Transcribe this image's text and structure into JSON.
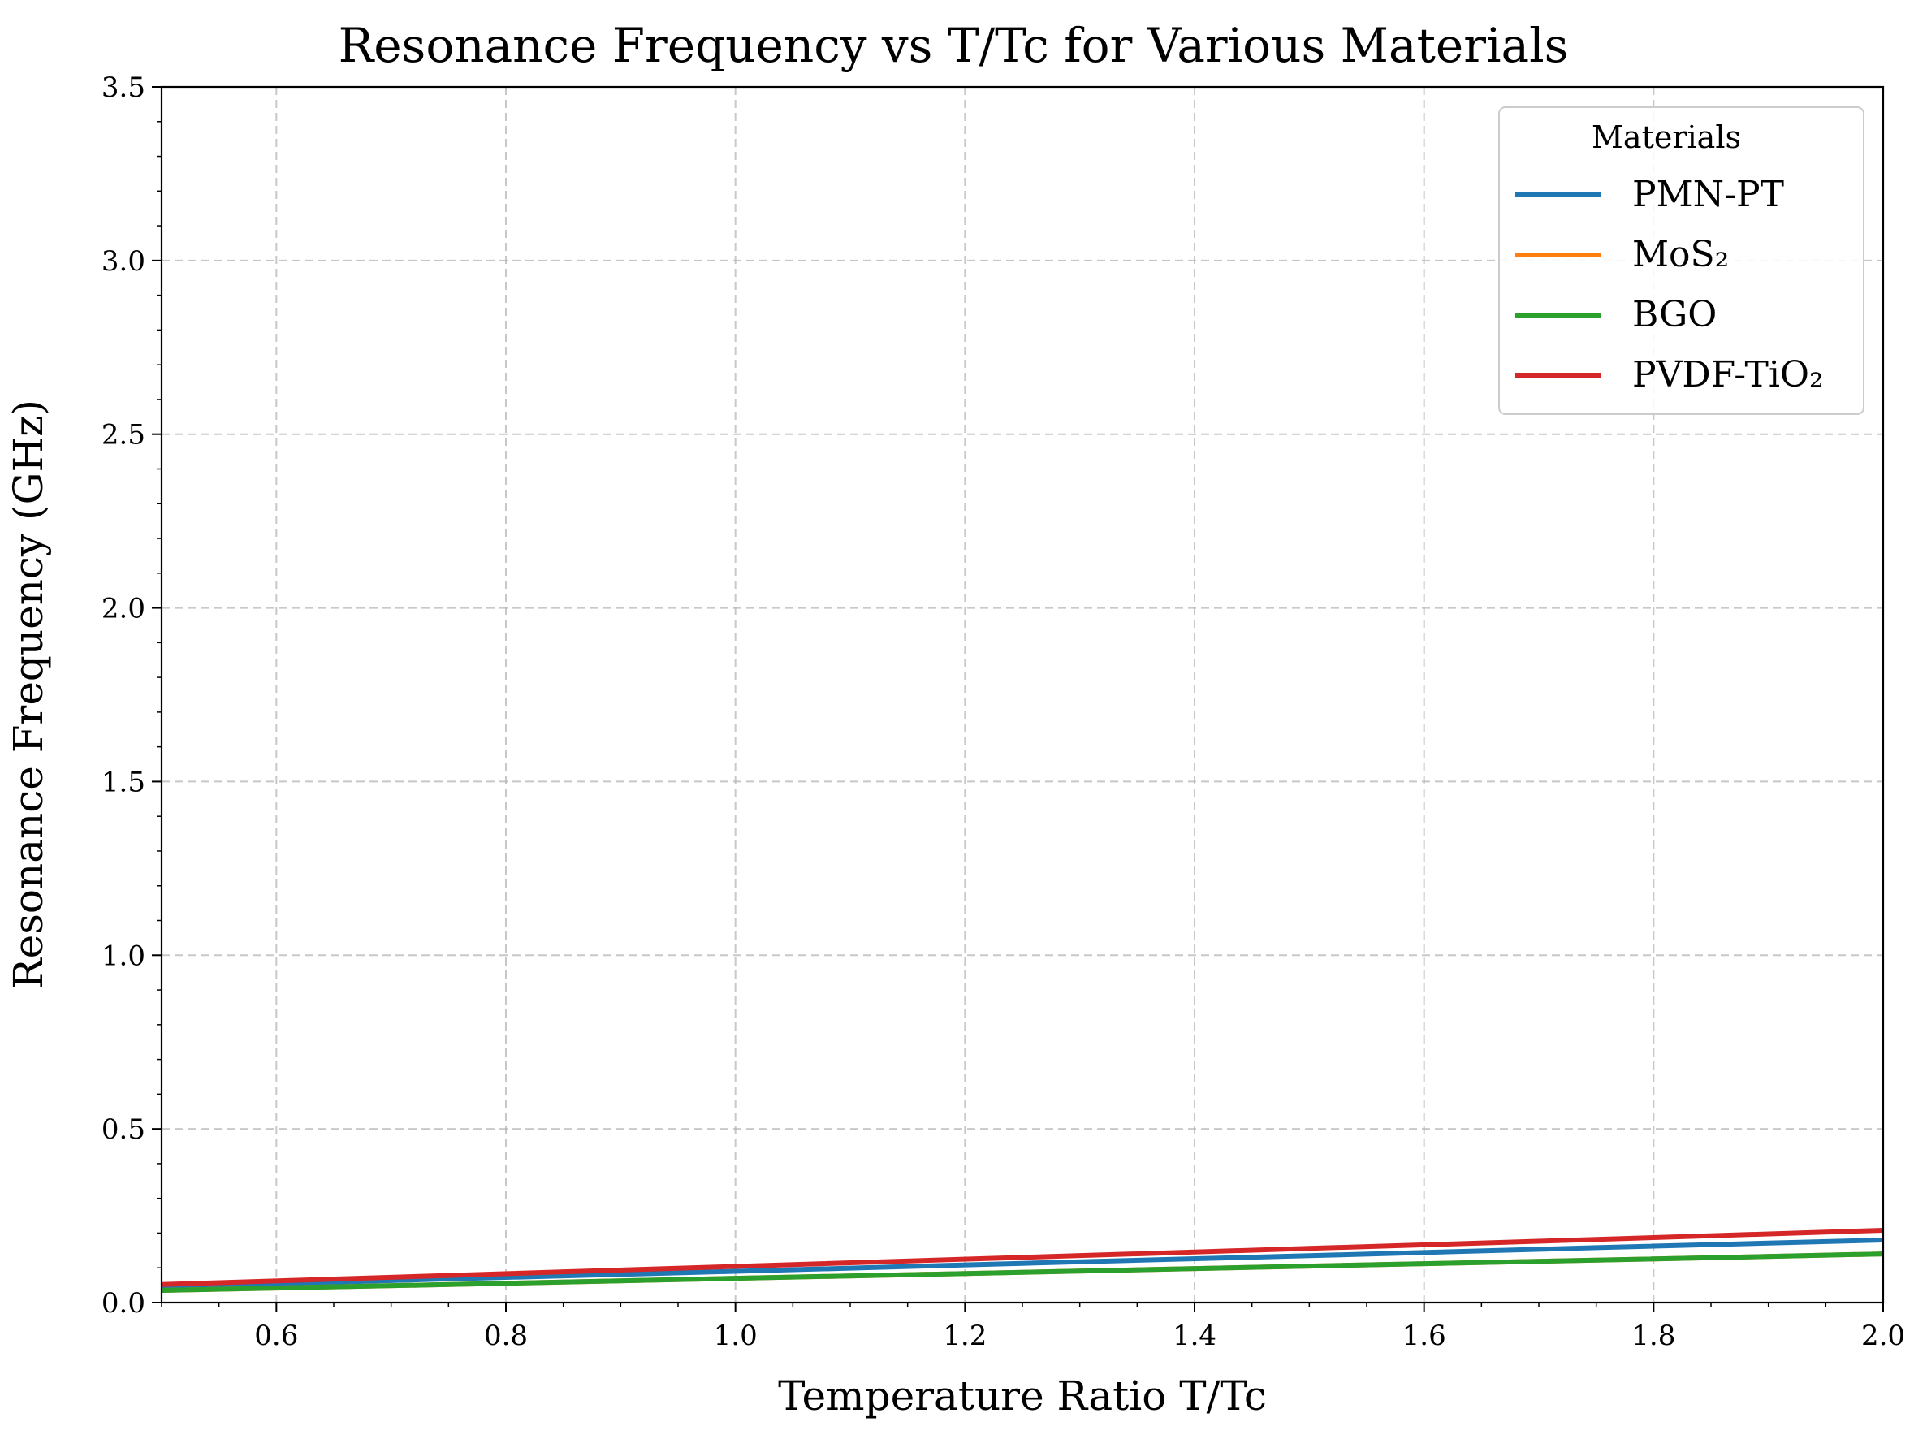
{
  "chart_data": {
    "type": "line",
    "title": "Resonance Frequency vs T/Tc for Various Materials",
    "xlabel": "Temperature Ratio T/Tc",
    "ylabel": "Resonance Frequency (GHz)",
    "xlim": [
      0.5,
      2.0
    ],
    "ylim": [
      0.0,
      3.5
    ],
    "xticks": [
      0.6,
      0.8,
      1.0,
      1.2,
      1.4,
      1.6,
      1.8,
      2.0
    ],
    "yticks": [
      0.0,
      0.5,
      1.0,
      1.5,
      2.0,
      2.5,
      3.0,
      3.5
    ],
    "xtick_labels": [
      "0.6",
      "0.8",
      "1.0",
      "1.2",
      "1.4",
      "1.6",
      "1.8",
      "2.0"
    ],
    "ytick_labels": [
      "0.0",
      "0.5",
      "1.0",
      "1.5",
      "2.0",
      "2.5",
      "3.0",
      "3.5"
    ],
    "grid": true,
    "grid_style": "dashed",
    "legend": {
      "title": "Materials",
      "placement": "top-right"
    },
    "x": [
      0.5,
      0.75,
      1.0,
      1.25,
      1.5,
      1.75,
      2.0
    ],
    "series": [
      {
        "name": "PMN-PT",
        "color": "#1f77b4",
        "values": [
          0.045,
          0.068,
          0.09,
          0.113,
          0.135,
          0.158,
          0.18
        ]
      },
      {
        "name": "MoS₂",
        "color": "#ff7f0e",
        "values": [
          0.035,
          0.052,
          0.07,
          0.087,
          0.105,
          0.122,
          0.14
        ]
      },
      {
        "name": "BGO",
        "color": "#2ca02c",
        "values": [
          0.035,
          0.052,
          0.07,
          0.087,
          0.105,
          0.122,
          0.14
        ]
      },
      {
        "name": "PVDF-TiO₂",
        "color": "#d62728",
        "values": [
          0.052,
          0.078,
          0.104,
          0.13,
          0.156,
          0.182,
          0.208
        ]
      }
    ]
  }
}
